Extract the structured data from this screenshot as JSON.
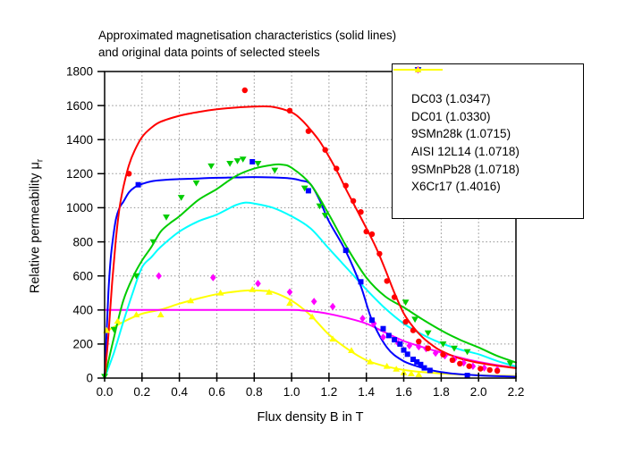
{
  "title": {
    "line1": "Approximated magnetisation characteristics (solid lines)",
    "line2": "and original data points of selected steels"
  },
  "axes": {
    "x": {
      "label": "Flux density B in T",
      "min": 0,
      "max": 2.2,
      "tick_values": [
        0.0,
        0.2,
        0.4,
        0.6,
        0.8,
        1.0,
        1.2,
        1.4,
        1.6,
        1.8,
        2.0,
        2.2
      ],
      "tick_labels": [
        "0.0",
        "0.2",
        "0.4",
        "0.6",
        "0.8",
        "1.0",
        "1.2",
        "1.4",
        "1.6",
        "1.8",
        "2.0",
        "2.2"
      ]
    },
    "y": {
      "label_main": "Relative permeability μ",
      "label_sub": "r",
      "min": 0,
      "max": 1800,
      "tick_values": [
        0,
        200,
        400,
        600,
        800,
        1000,
        1200,
        1400,
        1600,
        1800
      ],
      "tick_labels": [
        "0",
        "200",
        "400",
        "600",
        "800",
        "1000",
        "1200",
        "1400",
        "1600",
        "1800"
      ]
    }
  },
  "style": {
    "background": "#ffffff",
    "grid_color": "#909090",
    "axis_color": "#000000",
    "grid_style": "dotted"
  },
  "chart_data": {
    "type": "line",
    "title": "Approximated magnetisation characteristics (solid lines) and original data points of selected steels",
    "xlabel": "Flux density B in T",
    "ylabel": "Relative permeability μr",
    "xlim": [
      0,
      2.2
    ],
    "ylim": [
      0,
      1800
    ],
    "grid": "dotted",
    "legend_position": "top-right",
    "series": [
      {
        "name": "DC03",
        "legend_label": "DC03 (1.0347)",
        "color": "#ff0000",
        "marker": "circle",
        "curve": [
          [
            0,
            0
          ],
          [
            0.02,
            250
          ],
          [
            0.04,
            560
          ],
          [
            0.06,
            810
          ],
          [
            0.08,
            1000
          ],
          [
            0.1,
            1120
          ],
          [
            0.13,
            1250
          ],
          [
            0.16,
            1335
          ],
          [
            0.2,
            1415
          ],
          [
            0.25,
            1470
          ],
          [
            0.3,
            1505
          ],
          [
            0.4,
            1540
          ],
          [
            0.5,
            1562
          ],
          [
            0.6,
            1578
          ],
          [
            0.7,
            1588
          ],
          [
            0.8,
            1594
          ],
          [
            0.9,
            1592
          ],
          [
            1.0,
            1560
          ],
          [
            1.05,
            1520
          ],
          [
            1.1,
            1460
          ],
          [
            1.15,
            1390
          ],
          [
            1.2,
            1300
          ],
          [
            1.25,
            1200
          ],
          [
            1.3,
            1090
          ],
          [
            1.35,
            985
          ],
          [
            1.4,
            880
          ],
          [
            1.45,
            770
          ],
          [
            1.5,
            640
          ],
          [
            1.55,
            500
          ],
          [
            1.6,
            380
          ],
          [
            1.65,
            300
          ],
          [
            1.7,
            240
          ],
          [
            1.75,
            195
          ],
          [
            1.8,
            160
          ],
          [
            1.9,
            115
          ],
          [
            2.0,
            90
          ],
          [
            2.1,
            72
          ],
          [
            2.2,
            58
          ]
        ],
        "points": [
          [
            0.13,
            1200
          ],
          [
            0.75,
            1690
          ],
          [
            0.99,
            1570
          ],
          [
            1.09,
            1450
          ],
          [
            1.18,
            1340
          ],
          [
            1.24,
            1230
          ],
          [
            1.29,
            1130
          ],
          [
            1.33,
            1040
          ],
          [
            1.37,
            975
          ],
          [
            1.4,
            860
          ],
          [
            1.43,
            845
          ],
          [
            1.47,
            730
          ],
          [
            1.51,
            570
          ],
          [
            1.55,
            475
          ],
          [
            1.61,
            330
          ],
          [
            1.65,
            280
          ],
          [
            1.68,
            215
          ],
          [
            1.73,
            175
          ],
          [
            1.81,
            138
          ],
          [
            1.86,
            106
          ],
          [
            1.9,
            85
          ],
          [
            1.95,
            70
          ],
          [
            2.01,
            55
          ],
          [
            2.06,
            48
          ],
          [
            2.1,
            42
          ]
        ]
      },
      {
        "name": "DC01",
        "legend_label": "DC01 (1.0330)",
        "color": "#00cc00",
        "marker": "triangle-down",
        "curve": [
          [
            0,
            0
          ],
          [
            0.05,
            240
          ],
          [
            0.1,
            455
          ],
          [
            0.15,
            590
          ],
          [
            0.2,
            690
          ],
          [
            0.25,
            770
          ],
          [
            0.3,
            860
          ],
          [
            0.35,
            910
          ],
          [
            0.4,
            950
          ],
          [
            0.5,
            1045
          ],
          [
            0.6,
            1110
          ],
          [
            0.7,
            1185
          ],
          [
            0.8,
            1230
          ],
          [
            0.9,
            1252
          ],
          [
            0.95,
            1253
          ],
          [
            1.0,
            1235
          ],
          [
            1.1,
            1140
          ],
          [
            1.2,
            960
          ],
          [
            1.3,
            760
          ],
          [
            1.4,
            590
          ],
          [
            1.5,
            480
          ],
          [
            1.6,
            415
          ],
          [
            1.7,
            345
          ],
          [
            1.8,
            280
          ],
          [
            1.9,
            225
          ],
          [
            2.0,
            180
          ],
          [
            2.1,
            130
          ],
          [
            2.2,
            92
          ]
        ],
        "points": [
          [
            0.0,
            10
          ],
          [
            0.05,
            285
          ],
          [
            0.17,
            600
          ],
          [
            0.26,
            800
          ],
          [
            0.33,
            945
          ],
          [
            0.41,
            1060
          ],
          [
            0.49,
            1145
          ],
          [
            0.57,
            1245
          ],
          [
            0.67,
            1260
          ],
          [
            0.71,
            1275
          ],
          [
            0.74,
            1285
          ],
          [
            0.82,
            1260
          ],
          [
            0.91,
            1220
          ],
          [
            1.07,
            1115
          ],
          [
            1.15,
            1010
          ],
          [
            1.18,
            955
          ],
          [
            1.61,
            445
          ],
          [
            1.66,
            345
          ],
          [
            1.73,
            265
          ],
          [
            1.81,
            200
          ],
          [
            1.87,
            175
          ],
          [
            1.94,
            155
          ],
          [
            2.17,
            85
          ]
        ]
      },
      {
        "name": "9SMn28k",
        "legend_label": "9SMn28k (1.0715)",
        "color": "#0000ff",
        "marker": "square",
        "curve": [
          [
            0,
            0
          ],
          [
            0.01,
            250
          ],
          [
            0.02,
            500
          ],
          [
            0.03,
            670
          ],
          [
            0.04,
            780
          ],
          [
            0.06,
            930
          ],
          [
            0.08,
            1000
          ],
          [
            0.1,
            1035
          ],
          [
            0.13,
            1090
          ],
          [
            0.16,
            1120
          ],
          [
            0.2,
            1140
          ],
          [
            0.25,
            1155
          ],
          [
            0.3,
            1162
          ],
          [
            0.4,
            1168
          ],
          [
            0.5,
            1172
          ],
          [
            0.6,
            1176
          ],
          [
            0.7,
            1178
          ],
          [
            0.8,
            1180
          ],
          [
            0.9,
            1178
          ],
          [
            1.0,
            1172
          ],
          [
            1.05,
            1160
          ],
          [
            1.1,
            1140
          ],
          [
            1.15,
            1045
          ],
          [
            1.2,
            920
          ],
          [
            1.29,
            745
          ],
          [
            1.37,
            540
          ],
          [
            1.43,
            340
          ],
          [
            1.51,
            180
          ],
          [
            1.59,
            105
          ],
          [
            1.67,
            70
          ],
          [
            1.75,
            45
          ],
          [
            1.85,
            28
          ],
          [
            2.0,
            16
          ],
          [
            2.2,
            8
          ]
        ],
        "points": [
          [
            0.18,
            1135
          ],
          [
            0.79,
            1270
          ],
          [
            1.09,
            1100
          ],
          [
            1.29,
            750
          ],
          [
            1.37,
            565
          ],
          [
            1.43,
            340
          ],
          [
            1.49,
            290
          ],
          [
            1.52,
            250
          ],
          [
            1.55,
            225
          ],
          [
            1.58,
            200
          ],
          [
            1.6,
            165
          ],
          [
            1.62,
            140
          ],
          [
            1.65,
            110
          ],
          [
            1.67,
            95
          ],
          [
            1.69,
            80
          ],
          [
            1.71,
            60
          ],
          [
            1.74,
            45
          ],
          [
            1.94,
            15
          ]
        ]
      },
      {
        "name": "AISI 12L14",
        "legend_label": "AISI 12L14 (1.0718)",
        "color": "#00ffff",
        "marker": "none",
        "curve": [
          [
            0,
            0
          ],
          [
            0.05,
            150
          ],
          [
            0.1,
            330
          ],
          [
            0.15,
            500
          ],
          [
            0.2,
            650
          ],
          [
            0.25,
            710
          ],
          [
            0.3,
            770
          ],
          [
            0.4,
            860
          ],
          [
            0.5,
            920
          ],
          [
            0.6,
            960
          ],
          [
            0.7,
            1015
          ],
          [
            0.75,
            1030
          ],
          [
            0.8,
            1025
          ],
          [
            0.9,
            1000
          ],
          [
            1.0,
            950
          ],
          [
            1.1,
            880
          ],
          [
            1.2,
            760
          ],
          [
            1.3,
            640
          ],
          [
            1.4,
            520
          ],
          [
            1.5,
            410
          ],
          [
            1.6,
            320
          ],
          [
            1.7,
            255
          ],
          [
            1.8,
            205
          ],
          [
            1.9,
            168
          ],
          [
            2.0,
            140
          ],
          [
            2.1,
            100
          ],
          [
            2.2,
            68
          ]
        ],
        "points": []
      },
      {
        "name": "9SMnPb28",
        "legend_label": "9SMnPb28 (1.0718)",
        "color": "#ff00ff",
        "marker": "diamond",
        "curve": [
          [
            0,
            400
          ],
          [
            0.2,
            400
          ],
          [
            0.4,
            400
          ],
          [
            0.6,
            400
          ],
          [
            0.8,
            400
          ],
          [
            1.0,
            400
          ],
          [
            1.05,
            398
          ],
          [
            1.1,
            393
          ],
          [
            1.15,
            386
          ],
          [
            1.2,
            377
          ],
          [
            1.3,
            352
          ],
          [
            1.4,
            320
          ],
          [
            1.5,
            268
          ],
          [
            1.6,
            218
          ],
          [
            1.7,
            182
          ],
          [
            1.8,
            150
          ],
          [
            1.9,
            120
          ],
          [
            2.0,
            95
          ],
          [
            2.1,
            76
          ],
          [
            2.2,
            60
          ]
        ],
        "points": [
          [
            0.29,
            600
          ],
          [
            0.58,
            590
          ],
          [
            0.82,
            555
          ],
          [
            0.99,
            505
          ],
          [
            1.12,
            450
          ],
          [
            1.22,
            420
          ],
          [
            1.38,
            350
          ],
          [
            1.44,
            320
          ],
          [
            1.49,
            240
          ],
          [
            1.57,
            205
          ],
          [
            1.63,
            190
          ],
          [
            1.68,
            184
          ],
          [
            1.72,
            173
          ],
          [
            1.77,
            147
          ],
          [
            1.82,
            131
          ],
          [
            1.87,
            110
          ],
          [
            1.92,
            90
          ],
          [
            1.97,
            70
          ],
          [
            2.03,
            60
          ],
          [
            2.1,
            50
          ]
        ]
      },
      {
        "name": "X6Cr17",
        "legend_label": "X6Cr17 (1.4016)",
        "color": "#ffff00",
        "marker": "triangle-up",
        "curve": [
          [
            0,
            268
          ],
          [
            0.1,
            330
          ],
          [
            0.2,
            378
          ],
          [
            0.3,
            402
          ],
          [
            0.4,
            437
          ],
          [
            0.5,
            467
          ],
          [
            0.6,
            492
          ],
          [
            0.7,
            508
          ],
          [
            0.78,
            515
          ],
          [
            0.85,
            512
          ],
          [
            0.9,
            505
          ],
          [
            1.0,
            455
          ],
          [
            1.1,
            370
          ],
          [
            1.2,
            255
          ],
          [
            1.3,
            170
          ],
          [
            1.4,
            105
          ],
          [
            1.5,
            70
          ],
          [
            1.6,
            48
          ],
          [
            1.7,
            35
          ],
          [
            1.8,
            27
          ],
          [
            1.9,
            21
          ],
          [
            2.0,
            17
          ],
          [
            2.1,
            14
          ],
          [
            2.2,
            12
          ]
        ],
        "points": [
          [
            0.01,
            280
          ],
          [
            0.07,
            335
          ],
          [
            0.17,
            372
          ],
          [
            0.3,
            372
          ],
          [
            0.46,
            455
          ],
          [
            0.62,
            500
          ],
          [
            0.79,
            520
          ],
          [
            0.88,
            505
          ],
          [
            0.99,
            440
          ],
          [
            1.11,
            360
          ],
          [
            1.22,
            230
          ],
          [
            1.32,
            162
          ],
          [
            1.42,
            96
          ],
          [
            1.51,
            70
          ],
          [
            1.56,
            53
          ],
          [
            1.6,
            32
          ],
          [
            1.64,
            26
          ],
          [
            1.68,
            21
          ]
        ]
      }
    ]
  }
}
